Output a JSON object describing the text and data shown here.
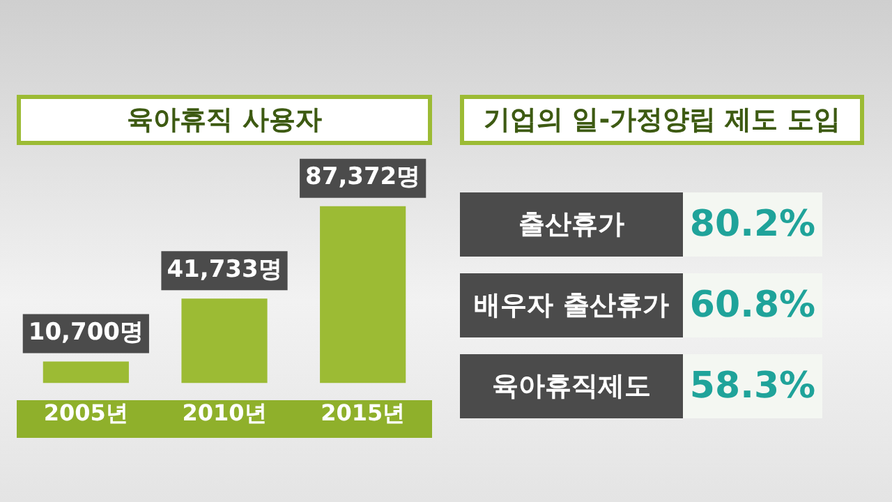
{
  "chart_data": [
    {
      "type": "bar",
      "title": "육아휴직 사용자",
      "categories": [
        "2005년",
        "2010년",
        "2015년"
      ],
      "values": [
        10700,
        41733,
        87372
      ],
      "color": "#9cbb34",
      "value_labels": [
        "10,700명",
        "41,733명",
        "87,372명"
      ]
    },
    {
      "type": "other",
      "title": "기업의 일-가정양립 제도 도입",
      "categories": [
        "출산휴가",
        "배우자 출산휴가",
        "육아휴직제도"
      ],
      "values": [
        80.2,
        60.8,
        58.3
      ],
      "value_labels": [
        "80.2%",
        "60.8%",
        "58.3%"
      ]
    }
  ]
}
